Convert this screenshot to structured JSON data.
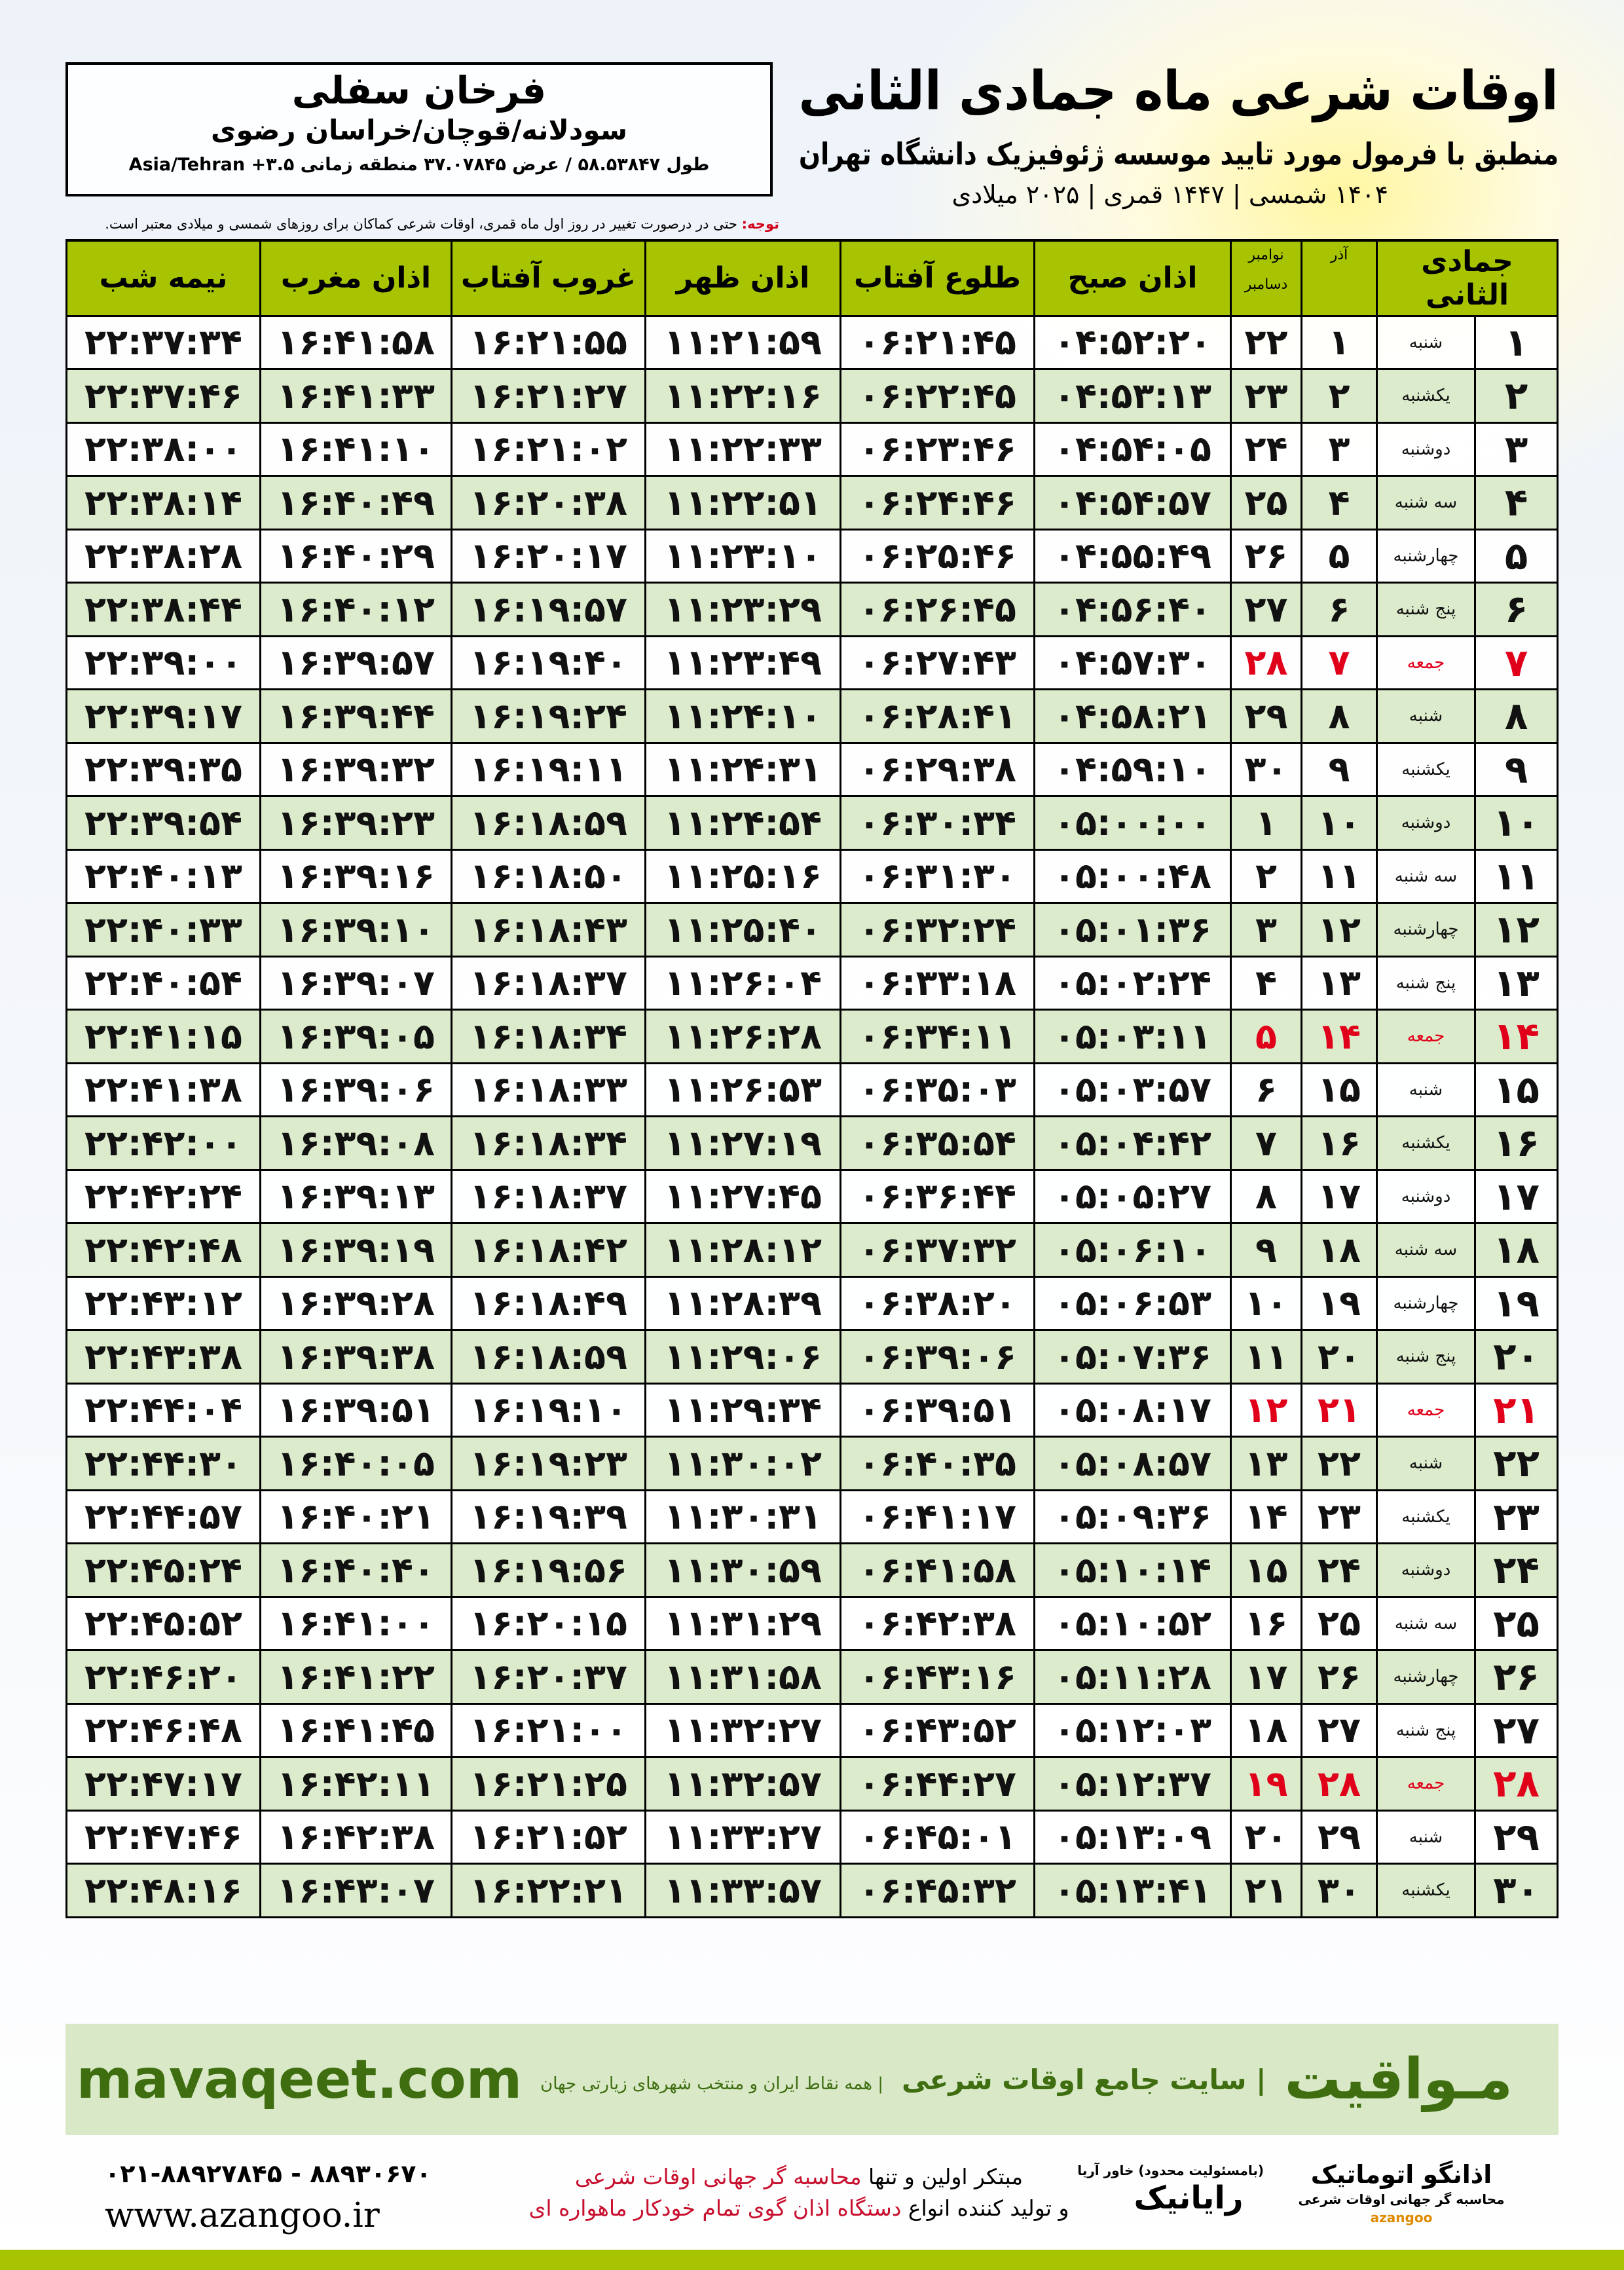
{
  "header": {
    "title": "اوقات شرعی ماه جمادی الثانی",
    "subtitle": "منطبق با فرمول مورد تایید موسسه ژئوفیزیک دانشگاه تهران",
    "years": "۱۴۰۴ شمسی | ۱۴۴۷ قمری | ۲۰۲۵ میلادی"
  },
  "location": {
    "city": "فرخان سفلی",
    "region": "سودلانه/قوچان/خراسان رضوی",
    "coords": "طول ۵۸.۵۳۸۴۷ / عرض ۳۷.۰۷۸۴۵ منطقه زمانی ۳.۵+ Asia/Tehran"
  },
  "note": {
    "label": "توجه:",
    "text": " حتی در درصورت تغییر در روز اول ماه قمری، اوقات شرعی کماکان برای روزهای شمسی و میلادی معتبر است."
  },
  "colors": {
    "header_green": "#a8c400",
    "row_alt": "#dcebcb",
    "friday_red": "#e0001a",
    "brand_green": "#3e6e10"
  },
  "table": {
    "headers": {
      "hijri": "جمادی الثانی",
      "azar": "آذر",
      "nov": "نوامبر",
      "dec": "دسامبر",
      "fajr": "اذان صبح",
      "sunrise": "طلوع آفتاب",
      "dhuhr": "اذان ظهر",
      "sunset": "غروب آفتاب",
      "maghrib": "اذان مغرب",
      "midnight": "نیمه شب"
    },
    "rows": [
      [
        "۱",
        "شنبه",
        "۱",
        "۲۲",
        "۰۴:۵۲:۲۰",
        "۰۶:۲۱:۴۵",
        "۱۱:۲۱:۵۹",
        "۱۶:۲۱:۵۵",
        "۱۶:۴۱:۵۸",
        "۲۲:۳۷:۳۴"
      ],
      [
        "۲",
        "یکشنبه",
        "۲",
        "۲۳",
        "۰۴:۵۳:۱۳",
        "۰۶:۲۲:۴۵",
        "۱۱:۲۲:۱۶",
        "۱۶:۲۱:۲۷",
        "۱۶:۴۱:۳۳",
        "۲۲:۳۷:۴۶"
      ],
      [
        "۳",
        "دوشنبه",
        "۳",
        "۲۴",
        "۰۴:۵۴:۰۵",
        "۰۶:۲۳:۴۶",
        "۱۱:۲۲:۳۳",
        "۱۶:۲۱:۰۲",
        "۱۶:۴۱:۱۰",
        "۲۲:۳۸:۰۰"
      ],
      [
        "۴",
        "سه شنبه",
        "۴",
        "۲۵",
        "۰۴:۵۴:۵۷",
        "۰۶:۲۴:۴۶",
        "۱۱:۲۲:۵۱",
        "۱۶:۲۰:۳۸",
        "۱۶:۴۰:۴۹",
        "۲۲:۳۸:۱۴"
      ],
      [
        "۵",
        "چهارشنبه",
        "۵",
        "۲۶",
        "۰۴:۵۵:۴۹",
        "۰۶:۲۵:۴۶",
        "۱۱:۲۳:۱۰",
        "۱۶:۲۰:۱۷",
        "۱۶:۴۰:۲۹",
        "۲۲:۳۸:۲۸"
      ],
      [
        "۶",
        "پنج شنبه",
        "۶",
        "۲۷",
        "۰۴:۵۶:۴۰",
        "۰۶:۲۶:۴۵",
        "۱۱:۲۳:۲۹",
        "۱۶:۱۹:۵۷",
        "۱۶:۴۰:۱۲",
        "۲۲:۳۸:۴۴"
      ],
      [
        "۷",
        "جمعه",
        "۷",
        "۲۸",
        "۰۴:۵۷:۳۰",
        "۰۶:۲۷:۴۳",
        "۱۱:۲۳:۴۹",
        "۱۶:۱۹:۴۰",
        "۱۶:۳۹:۵۷",
        "۲۲:۳۹:۰۰"
      ],
      [
        "۸",
        "شنبه",
        "۸",
        "۲۹",
        "۰۴:۵۸:۲۱",
        "۰۶:۲۸:۴۱",
        "۱۱:۲۴:۱۰",
        "۱۶:۱۹:۲۴",
        "۱۶:۳۹:۴۴",
        "۲۲:۳۹:۱۷"
      ],
      [
        "۹",
        "یکشنبه",
        "۹",
        "۳۰",
        "۰۴:۵۹:۱۰",
        "۰۶:۲۹:۳۸",
        "۱۱:۲۴:۳۱",
        "۱۶:۱۹:۱۱",
        "۱۶:۳۹:۳۲",
        "۲۲:۳۹:۳۵"
      ],
      [
        "۱۰",
        "دوشنبه",
        "۱۰",
        "۱",
        "۰۵:۰۰:۰۰",
        "۰۶:۳۰:۳۴",
        "۱۱:۲۴:۵۴",
        "۱۶:۱۸:۵۹",
        "۱۶:۳۹:۲۳",
        "۲۲:۳۹:۵۴"
      ],
      [
        "۱۱",
        "سه شنبه",
        "۱۱",
        "۲",
        "۰۵:۰۰:۴۸",
        "۰۶:۳۱:۳۰",
        "۱۱:۲۵:۱۶",
        "۱۶:۱۸:۵۰",
        "۱۶:۳۹:۱۶",
        "۲۲:۴۰:۱۳"
      ],
      [
        "۱۲",
        "چهارشنبه",
        "۱۲",
        "۳",
        "۰۵:۰۱:۳۶",
        "۰۶:۳۲:۲۴",
        "۱۱:۲۵:۴۰",
        "۱۶:۱۸:۴۳",
        "۱۶:۳۹:۱۰",
        "۲۲:۴۰:۳۳"
      ],
      [
        "۱۳",
        "پنج شنبه",
        "۱۳",
        "۴",
        "۰۵:۰۲:۲۴",
        "۰۶:۳۳:۱۸",
        "۱۱:۲۶:۰۴",
        "۱۶:۱۸:۳۷",
        "۱۶:۳۹:۰۷",
        "۲۲:۴۰:۵۴"
      ],
      [
        "۱۴",
        "جمعه",
        "۱۴",
        "۵",
        "۰۵:۰۳:۱۱",
        "۰۶:۳۴:۱۱",
        "۱۱:۲۶:۲۸",
        "۱۶:۱۸:۳۴",
        "۱۶:۳۹:۰۵",
        "۲۲:۴۱:۱۵"
      ],
      [
        "۱۵",
        "شنبه",
        "۱۵",
        "۶",
        "۰۵:۰۳:۵۷",
        "۰۶:۳۵:۰۳",
        "۱۱:۲۶:۵۳",
        "۱۶:۱۸:۳۳",
        "۱۶:۳۹:۰۶",
        "۲۲:۴۱:۳۸"
      ],
      [
        "۱۶",
        "یکشنبه",
        "۱۶",
        "۷",
        "۰۵:۰۴:۴۲",
        "۰۶:۳۵:۵۴",
        "۱۱:۲۷:۱۹",
        "۱۶:۱۸:۳۴",
        "۱۶:۳۹:۰۸",
        "۲۲:۴۲:۰۰"
      ],
      [
        "۱۷",
        "دوشنبه",
        "۱۷",
        "۸",
        "۰۵:۰۵:۲۷",
        "۰۶:۳۶:۴۴",
        "۱۱:۲۷:۴۵",
        "۱۶:۱۸:۳۷",
        "۱۶:۳۹:۱۳",
        "۲۲:۴۲:۲۴"
      ],
      [
        "۱۸",
        "سه شنبه",
        "۱۸",
        "۹",
        "۰۵:۰۶:۱۰",
        "۰۶:۳۷:۳۲",
        "۱۱:۲۸:۱۲",
        "۱۶:۱۸:۴۲",
        "۱۶:۳۹:۱۹",
        "۲۲:۴۲:۴۸"
      ],
      [
        "۱۹",
        "چهارشنبه",
        "۱۹",
        "۱۰",
        "۰۵:۰۶:۵۳",
        "۰۶:۳۸:۲۰",
        "۱۱:۲۸:۳۹",
        "۱۶:۱۸:۴۹",
        "۱۶:۳۹:۲۸",
        "۲۲:۴۳:۱۲"
      ],
      [
        "۲۰",
        "پنج شنبه",
        "۲۰",
        "۱۱",
        "۰۵:۰۷:۳۶",
        "۰۶:۳۹:۰۶",
        "۱۱:۲۹:۰۶",
        "۱۶:۱۸:۵۹",
        "۱۶:۳۹:۳۸",
        "۲۲:۴۳:۳۸"
      ],
      [
        "۲۱",
        "جمعه",
        "۲۱",
        "۱۲",
        "۰۵:۰۸:۱۷",
        "۰۶:۳۹:۵۱",
        "۱۱:۲۹:۳۴",
        "۱۶:۱۹:۱۰",
        "۱۶:۳۹:۵۱",
        "۲۲:۴۴:۰۴"
      ],
      [
        "۲۲",
        "شنبه",
        "۲۲",
        "۱۳",
        "۰۵:۰۸:۵۷",
        "۰۶:۴۰:۳۵",
        "۱۱:۳۰:۰۲",
        "۱۶:۱۹:۲۳",
        "۱۶:۴۰:۰۵",
        "۲۲:۴۴:۳۰"
      ],
      [
        "۲۳",
        "یکشنبه",
        "۲۳",
        "۱۴",
        "۰۵:۰۹:۳۶",
        "۰۶:۴۱:۱۷",
        "۱۱:۳۰:۳۱",
        "۱۶:۱۹:۳۹",
        "۱۶:۴۰:۲۱",
        "۲۲:۴۴:۵۷"
      ],
      [
        "۲۴",
        "دوشنبه",
        "۲۴",
        "۱۵",
        "۰۵:۱۰:۱۴",
        "۰۶:۴۱:۵۸",
        "۱۱:۳۰:۵۹",
        "۱۶:۱۹:۵۶",
        "۱۶:۴۰:۴۰",
        "۲۲:۴۵:۲۴"
      ],
      [
        "۲۵",
        "سه شنبه",
        "۲۵",
        "۱۶",
        "۰۵:۱۰:۵۲",
        "۰۶:۴۲:۳۸",
        "۱۱:۳۱:۲۹",
        "۱۶:۲۰:۱۵",
        "۱۶:۴۱:۰۰",
        "۲۲:۴۵:۵۲"
      ],
      [
        "۲۶",
        "چهارشنبه",
        "۲۶",
        "۱۷",
        "۰۵:۱۱:۲۸",
        "۰۶:۴۳:۱۶",
        "۱۱:۳۱:۵۸",
        "۱۶:۲۰:۳۷",
        "۱۶:۴۱:۲۲",
        "۲۲:۴۶:۲۰"
      ],
      [
        "۲۷",
        "پنج شنبه",
        "۲۷",
        "۱۸",
        "۰۵:۱۲:۰۳",
        "۰۶:۴۳:۵۲",
        "۱۱:۳۲:۲۷",
        "۱۶:۲۱:۰۰",
        "۱۶:۴۱:۴۵",
        "۲۲:۴۶:۴۸"
      ],
      [
        "۲۸",
        "جمعه",
        "۲۸",
        "۱۹",
        "۰۵:۱۲:۳۷",
        "۰۶:۴۴:۲۷",
        "۱۱:۳۲:۵۷",
        "۱۶:۲۱:۲۵",
        "۱۶:۴۲:۱۱",
        "۲۲:۴۷:۱۷"
      ],
      [
        "۲۹",
        "شنبه",
        "۲۹",
        "۲۰",
        "۰۵:۱۳:۰۹",
        "۰۶:۴۵:۰۱",
        "۱۱:۳۳:۲۷",
        "۱۶:۲۱:۵۲",
        "۱۶:۴۲:۳۸",
        "۲۲:۴۷:۴۶"
      ],
      [
        "۳۰",
        "یکشنبه",
        "۳۰",
        "۲۱",
        "۰۵:۱۳:۴۱",
        "۰۶:۴۵:۳۲",
        "۱۱:۳۳:۵۷",
        "۱۶:۲۲:۲۱",
        "۱۶:۴۳:۰۷",
        "۲۲:۴۸:۱۶"
      ]
    ],
    "friday_rows": [
      7,
      14,
      21,
      28
    ]
  },
  "footer": {
    "brand": "مـواقیت",
    "brand_tag": "| سایت جامع اوقات شرعی",
    "brand_sub": "| همه نقاط ایران و منتخب شهرهای زیارتی جهان",
    "site": "mavaqeet.com",
    "phone": "۰۲۱-۸۸۹۲۷۸۴۵ - ۸۸۹۳۰۶۷۰",
    "web": "www.azangoo.ir",
    "line1_a": "مبتکر اولین و تنها ",
    "line1_b": "محاسبه گر جهانی اوقات شرعی",
    "line2_a": "و تولید کننده انواع ",
    "line2_b": "دستگاه اذان گوی تمام خودکار ماهواره ای",
    "logo_rayanik": "رایانیک",
    "logo_rayanik_sub": "(بامسئولیت محدود) خاور آریا",
    "logo_azangoo": "اذانگو اتوماتیک",
    "logo_azangoo_sub": "محاسبه گر جهانی اوقات شرعی",
    "logo_azangoo_latin": "azangoo"
  }
}
